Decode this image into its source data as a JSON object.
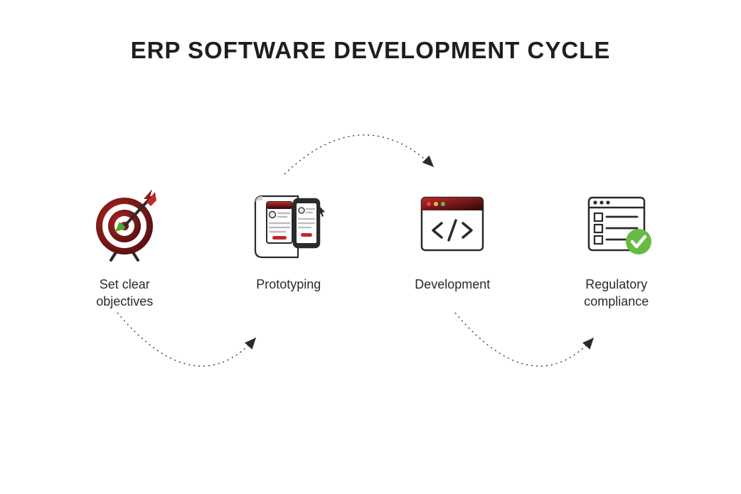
{
  "type": "infographic",
  "title": "ERP SOFTWARE DEVELOPMENT CYCLE",
  "background_color": "#ffffff",
  "title_color": "#1e1e1e",
  "title_fontsize": 33,
  "label_fontsize": 18,
  "label_color": "#2a2a2a",
  "colors": {
    "dark": "#2a2a2a",
    "red_dark": "#8e1a1a",
    "red": "#c22828",
    "green_arrow": "#4fa82f",
    "green_check": "#66bb44",
    "gray": "#bdbdbd",
    "light_gray": "#e8e8e8",
    "dot_red": "#d94a4a",
    "dot_yellow": "#e8b84a",
    "dot_green": "#5fb85f"
  },
  "steps": [
    {
      "label": "Set clear\nobjectives",
      "icon": "target"
    },
    {
      "label": "Prototyping",
      "icon": "prototype"
    },
    {
      "label": "Development",
      "icon": "code-window"
    },
    {
      "label": "Regulatory\ncompliance",
      "icon": "checklist"
    }
  ],
  "arrows": {
    "stroke_color": "#2a2a2a",
    "dash": "2 4",
    "arrowhead_size": 14,
    "paths": [
      {
        "from": 0,
        "to": 1,
        "shape": "down-arc"
      },
      {
        "from": 1,
        "to": 2,
        "shape": "up-arc"
      },
      {
        "from": 2,
        "to": 3,
        "shape": "down-arc"
      }
    ]
  }
}
